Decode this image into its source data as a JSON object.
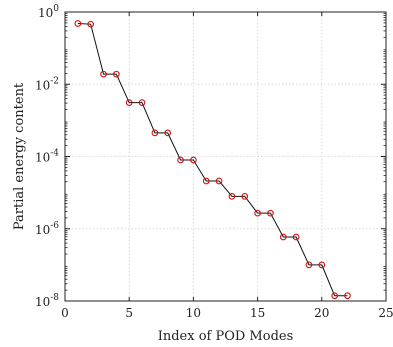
{
  "chart_data": {
    "type": "line",
    "xlabel": "Index of POD Modes",
    "ylabel": "Partial energy content",
    "xlim": [
      0,
      25
    ],
    "ylim": [
      1e-08,
      1
    ],
    "yscale": "log",
    "grid": true,
    "xticks": [
      0,
      5,
      10,
      15,
      20,
      25
    ],
    "xtick_labels": [
      "0",
      "5",
      "10",
      "15",
      "20",
      "25"
    ],
    "yticks": [
      1e-08,
      1e-06,
      0.0001,
      0.01,
      1
    ],
    "ytick_labels": [
      {
        "base": "10",
        "exp": "-8"
      },
      {
        "base": "10",
        "exp": "-6"
      },
      {
        "base": "10",
        "exp": "-4"
      },
      {
        "base": "10",
        "exp": "-2"
      },
      {
        "base": "10",
        "exp": "0"
      }
    ],
    "series": [
      {
        "x": [
          1,
          2,
          3,
          4,
          5,
          6,
          7,
          8,
          9,
          10,
          11,
          12,
          13,
          14,
          15,
          16,
          17,
          18,
          19,
          20,
          21,
          22
        ],
        "values": [
          0.48,
          0.46,
          0.019,
          0.019,
          0.0031,
          0.0031,
          0.00045,
          0.00045,
          8e-05,
          8e-05,
          2.1e-05,
          2.1e-05,
          7.9e-06,
          7.9e-06,
          2.7e-06,
          2.7e-06,
          5.9e-07,
          5.9e-07,
          1e-07,
          1e-07,
          1.4e-08,
          1.4e-08
        ],
        "line_color": "#111111",
        "marker_color": "#cc1111"
      }
    ]
  }
}
